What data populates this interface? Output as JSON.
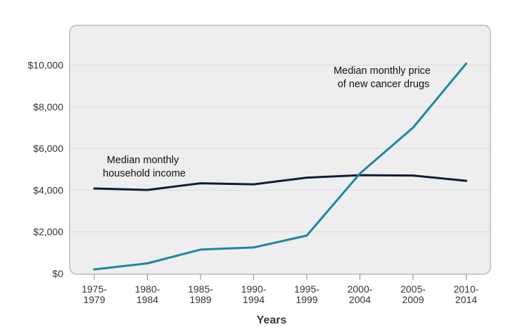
{
  "chart_data": {
    "type": "line",
    "categories": [
      "1975-1979",
      "1980-1984",
      "1985-1989",
      "1990-1994",
      "1995-1999",
      "2000-2004",
      "2005-2009",
      "2010-2014"
    ],
    "category_labels": [
      [
        "1975-",
        "1979"
      ],
      [
        "1980-",
        "1984"
      ],
      [
        "1985-",
        "1989"
      ],
      [
        "1990-",
        "1994"
      ],
      [
        "1995-",
        "1999"
      ],
      [
        "2000-",
        "2004"
      ],
      [
        "2005-",
        "2009"
      ],
      [
        "2010-",
        "2014"
      ]
    ],
    "series": [
      {
        "name": "Median monthly household income",
        "label_lines": [
          "Median monthly",
          "household income"
        ],
        "color": "#0f1d33",
        "values": [
          4080,
          4010,
          4330,
          4280,
          4600,
          4720,
          4700,
          4450
        ]
      },
      {
        "name": "Median monthly price of new cancer drugs",
        "label_lines": [
          "Median monthly price",
          "of new cancer drugs"
        ],
        "color": "#1b86a6",
        "values": [
          200,
          490,
          1150,
          1250,
          1820,
          4800,
          7000,
          10070
        ]
      }
    ],
    "y_ticks": [
      0,
      2000,
      4000,
      6000,
      8000,
      10000
    ],
    "y_tick_labels": [
      "$0",
      "$2,000",
      "$4,000",
      "$6,000",
      "$8,000",
      "$10,000"
    ],
    "ylim": [
      0,
      10500
    ],
    "xlabel": "Years",
    "ylabel": "",
    "title": "",
    "grid": true,
    "legend": "inline-annotations",
    "plot_background": "#eeeeee"
  }
}
